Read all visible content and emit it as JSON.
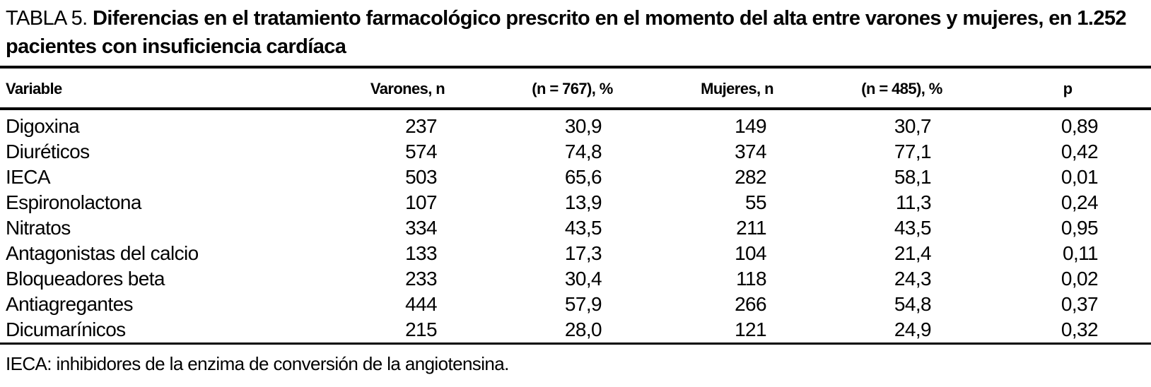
{
  "page": {
    "background": "#ffffff",
    "text_color": "#000000",
    "rule_color": "#000000"
  },
  "title": {
    "label": "TABLA 5.",
    "text": "Diferencias en el tratamiento farmacológico prescrito en el momento del alta entre varones y mujeres, en 1.252 pacientes con insuficiencia cardíaca"
  },
  "table": {
    "columns": [
      {
        "key": "variable",
        "label": "Variable"
      },
      {
        "key": "varones_n",
        "label": "Varones, n"
      },
      {
        "key": "varones_pct",
        "label": "(n = 767), %"
      },
      {
        "key": "mujeres_n",
        "label": "Mujeres, n"
      },
      {
        "key": "mujeres_pct",
        "label": "(n = 485), %"
      },
      {
        "key": "p",
        "label": "p"
      }
    ],
    "rows": [
      {
        "variable": "Digoxina",
        "varones_n": "237",
        "varones_pct": "30,9",
        "mujeres_n": "149",
        "mujeres_pct": "30,7",
        "p": "0,89"
      },
      {
        "variable": "Diuréticos",
        "varones_n": "574",
        "varones_pct": "74,8",
        "mujeres_n": "374",
        "mujeres_pct": "77,1",
        "p": "0,42"
      },
      {
        "variable": "IECA",
        "varones_n": "503",
        "varones_pct": "65,6",
        "mujeres_n": "282",
        "mujeres_pct": "58,1",
        "p": "0,01"
      },
      {
        "variable": "Espironolactona",
        "varones_n": "107",
        "varones_pct": "13,9",
        "mujeres_n": "55",
        "mujeres_pct": "11,3",
        "p": "0,24"
      },
      {
        "variable": "Nitratos",
        "varones_n": "334",
        "varones_pct": "43,5",
        "mujeres_n": "211",
        "mujeres_pct": "43,5",
        "p": "0,95"
      },
      {
        "variable": "Antagonistas del calcio",
        "varones_n": "133",
        "varones_pct": "17,3",
        "mujeres_n": "104",
        "mujeres_pct": "21,4",
        "p": "0,11"
      },
      {
        "variable": "Bloqueadores beta",
        "varones_n": "233",
        "varones_pct": "30,4",
        "mujeres_n": "118",
        "mujeres_pct": "24,3",
        "p": "0,02"
      },
      {
        "variable": "Antiagregantes",
        "varones_n": "444",
        "varones_pct": "57,9",
        "mujeres_n": "266",
        "mujeres_pct": "54,8",
        "p": "0,37"
      },
      {
        "variable": "Dicumarínicos",
        "varones_n": "215",
        "varones_pct": "28,0",
        "mujeres_n": "121",
        "mujeres_pct": "24,9",
        "p": "0,32"
      }
    ]
  },
  "footnote": "IECA: inhibidores de la enzima de conversión de la angiotensina."
}
